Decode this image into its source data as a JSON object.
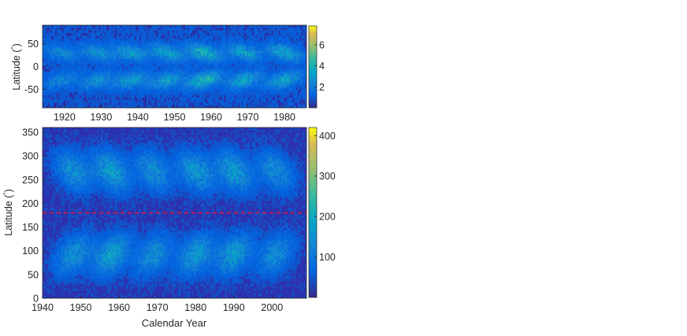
{
  "chart_data": [
    {
      "type": "heatmap",
      "title": "",
      "xlabel": "",
      "ylabel": "Latitude (°)",
      "ylabel_main": "Latitude (",
      "ylabel_degree": "°",
      "ylabel_close": ")",
      "xlim": [
        1914,
        1986
      ],
      "ylim": [
        90,
        -90
      ],
      "x_ticks": [
        1920,
        1930,
        1940,
        1950,
        1960,
        1970,
        1980
      ],
      "x_tick_labels": [
        "1920",
        "1930",
        "1940",
        "1950",
        "1960",
        "1970",
        "1980"
      ],
      "y_ticks": [
        -50,
        0,
        50
      ],
      "y_tick_labels": [
        "-50",
        "0",
        "50"
      ],
      "colorbar": {
        "range": [
          0,
          7.8
        ],
        "ticks": [
          2,
          4,
          6
        ],
        "tick_labels": [
          "2",
          "4",
          "6"
        ]
      },
      "activity_cycles": [
        {
          "center": 1919,
          "peak": 1.6
        },
        {
          "center": 1929,
          "peak": 2.0
        },
        {
          "center": 1938,
          "peak": 2.4
        },
        {
          "center": 1948,
          "peak": 2.6
        },
        {
          "center": 1958,
          "peak": 3.4
        },
        {
          "center": 1969,
          "peak": 2.7
        },
        {
          "center": 1980,
          "peak": 2.8
        }
      ],
      "background_level": 0.9,
      "colormap": "parula"
    },
    {
      "type": "heatmap",
      "title": "",
      "xlabel": "Calendar Year",
      "ylabel": "Latitude (°)",
      "ylabel_main": "Latitude (",
      "ylabel_degree": "°",
      "ylabel_close": ")",
      "xlim": [
        1940,
        2009
      ],
      "ylim": [
        360,
        0
      ],
      "x_ticks": [
        1940,
        1950,
        1960,
        1970,
        1980,
        1990,
        2000
      ],
      "x_tick_labels": [
        "1940",
        "1950",
        "1960",
        "1970",
        "1980",
        "1990",
        "2000"
      ],
      "y_ticks": [
        0,
        50,
        100,
        150,
        200,
        250,
        300,
        350
      ],
      "y_tick_labels": [
        "0",
        "50",
        "100",
        "150",
        "200",
        "250",
        "300",
        "350"
      ],
      "colorbar": {
        "range": [
          0,
          420
        ],
        "ticks": [
          100,
          200,
          300,
          400
        ],
        "tick_labels": [
          "100",
          "200",
          "300",
          "400"
        ]
      },
      "reference_line": {
        "y": 180,
        "style": "dashed",
        "color": "#e8192c"
      },
      "activity_cycles": [
        {
          "center": 1948,
          "peak": 120
        },
        {
          "center": 1958,
          "peak": 150
        },
        {
          "center": 1969,
          "peak": 115
        },
        {
          "center": 1980,
          "peak": 135
        },
        {
          "center": 1990,
          "peak": 140
        },
        {
          "center": 2001,
          "peak": 110
        }
      ],
      "background_level": 35,
      "colormap": "parula"
    }
  ],
  "colors": {
    "axis": "#262626",
    "reference_line": "#e8192c"
  }
}
